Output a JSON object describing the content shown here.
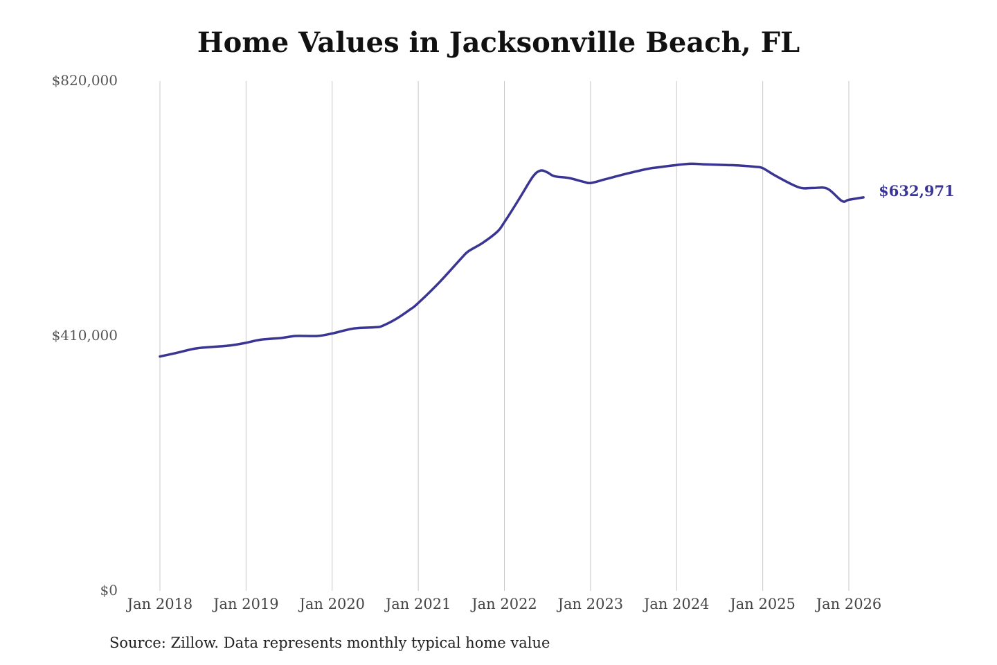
{
  "chart_data": {
    "type": "line",
    "title": "Home Values in Jacksonville Beach, FL",
    "xlabel": "",
    "ylabel": "",
    "ylim": [
      0,
      820000
    ],
    "y_ticks": [
      "$0",
      "$410,000",
      "$820,000"
    ],
    "y_tick_values": [
      0,
      410000,
      820000
    ],
    "x_ticks": [
      "Jan 2018",
      "Jan 2019",
      "Jan 2020",
      "Jan 2021",
      "Jan 2022",
      "Jan 2023",
      "Jan 2024",
      "Jan 2025",
      "Jan 2026"
    ],
    "x_tick_values": [
      2018,
      2019,
      2020,
      2021,
      2022,
      2023,
      2024,
      2025,
      2026
    ],
    "xlim": [
      2018,
      2026.2
    ],
    "grid": "vertical",
    "line_color": "#3a3592",
    "series": [
      {
        "x": [
          2018.0,
          2018.17,
          2018.42,
          2018.67,
          2018.83,
          2019.0,
          2019.17,
          2019.42,
          2019.58,
          2019.83,
          2020.0,
          2020.25,
          2020.5,
          2020.58,
          2020.75,
          2020.92,
          2021.0,
          2021.25,
          2021.5,
          2021.58,
          2021.75,
          2021.92,
          2022.0,
          2022.17,
          2022.33,
          2022.42,
          2022.5,
          2022.58,
          2022.75,
          2022.92,
          2023.0,
          2023.17,
          2023.42,
          2023.67,
          2023.83,
          2024.0,
          2024.17,
          2024.33,
          2024.58,
          2024.75,
          2024.92,
          2025.0,
          2025.17,
          2025.42,
          2025.58,
          2025.75,
          2025.92,
          2026.0,
          2026.17
        ],
        "y": [
          377000,
          382000,
          390000,
          393000,
          395000,
          399000,
          404000,
          407000,
          410000,
          410000,
          414000,
          422000,
          424000,
          426000,
          438000,
          454000,
          463000,
          497000,
          535000,
          546000,
          560000,
          578000,
          593000,
          630000,
          666000,
          676000,
          673000,
          667000,
          664000,
          658000,
          656000,
          662000,
          671000,
          679000,
          682000,
          685000,
          687000,
          686000,
          685000,
          684000,
          682000,
          680000,
          666000,
          649000,
          648000,
          647000,
          627000,
          629000,
          632971
        ]
      }
    ],
    "end_label": "$632,971"
  },
  "source": "Source: Zillow. Data represents monthly typical home value"
}
